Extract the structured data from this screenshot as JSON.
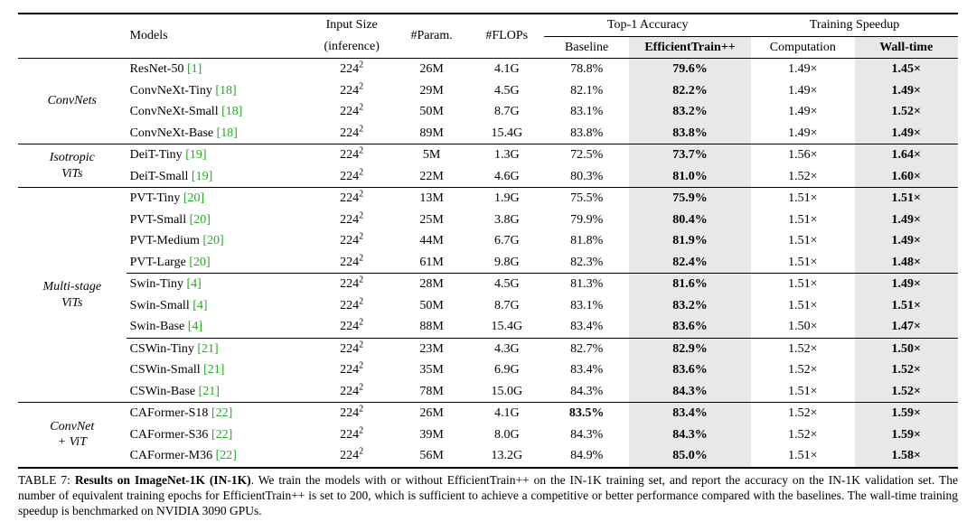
{
  "header": {
    "models": "Models",
    "input_size": "Input Size",
    "inference": "(inference)",
    "param": "#Param.",
    "flops": "#FLOPs",
    "top1": "Top-1 Accuracy",
    "baseline": "Baseline",
    "efftrain": "EfficientTrain++",
    "speedup": "Training Speedup",
    "computation": "Computation",
    "walltime": "Wall-time"
  },
  "input_str": {
    "val": "224",
    "exp": "2"
  },
  "groups": [
    {
      "category_lines": [
        "ConvNets"
      ],
      "sub": [
        {
          "thin_after": false,
          "rows": [
            {
              "model": "ResNet-50",
              "cite": "[1]",
              "param": "26M",
              "flops": "4.1G",
              "base": "78.8%",
              "eff": "79.6%",
              "comp": "1.49×",
              "wall": "1.45×",
              "base_bold": false
            },
            {
              "model": "ConvNeXt-Tiny",
              "cite": "[18]",
              "param": "29M",
              "flops": "4.5G",
              "base": "82.1%",
              "eff": "82.2%",
              "comp": "1.49×",
              "wall": "1.49×",
              "base_bold": false
            },
            {
              "model": "ConvNeXt-Small",
              "cite": "[18]",
              "param": "50M",
              "flops": "8.7G",
              "base": "83.1%",
              "eff": "83.2%",
              "comp": "1.49×",
              "wall": "1.52×",
              "base_bold": false
            },
            {
              "model": "ConvNeXt-Base",
              "cite": "[18]",
              "param": "89M",
              "flops": "15.4G",
              "base": "83.8%",
              "eff": "83.8%",
              "comp": "1.49×",
              "wall": "1.49×",
              "base_bold": false
            }
          ]
        }
      ]
    },
    {
      "category_lines": [
        "Isotropic",
        "ViTs"
      ],
      "sub": [
        {
          "thin_after": false,
          "rows": [
            {
              "model": "DeiT-Tiny",
              "cite": "[19]",
              "param": "5M",
              "flops": "1.3G",
              "base": "72.5%",
              "eff": "73.7%",
              "comp": "1.56×",
              "wall": "1.64×",
              "base_bold": false
            },
            {
              "model": "DeiT-Small",
              "cite": "[19]",
              "param": "22M",
              "flops": "4.6G",
              "base": "80.3%",
              "eff": "81.0%",
              "comp": "1.52×",
              "wall": "1.60×",
              "base_bold": false
            }
          ]
        }
      ]
    },
    {
      "category_lines": [
        "Multi-stage",
        "ViTs"
      ],
      "sub": [
        {
          "thin_after": true,
          "rows": [
            {
              "model": "PVT-Tiny",
              "cite": "[20]",
              "param": "13M",
              "flops": "1.9G",
              "base": "75.5%",
              "eff": "75.9%",
              "comp": "1.51×",
              "wall": "1.51×",
              "base_bold": false
            },
            {
              "model": "PVT-Small",
              "cite": "[20]",
              "param": "25M",
              "flops": "3.8G",
              "base": "79.9%",
              "eff": "80.4%",
              "comp": "1.51×",
              "wall": "1.49×",
              "base_bold": false
            },
            {
              "model": "PVT-Medium",
              "cite": "[20]",
              "param": "44M",
              "flops": "6.7G",
              "base": "81.8%",
              "eff": "81.9%",
              "comp": "1.51×",
              "wall": "1.49×",
              "base_bold": false
            },
            {
              "model": "PVT-Large",
              "cite": "[20]",
              "param": "61M",
              "flops": "9.8G",
              "base": "82.3%",
              "eff": "82.4%",
              "comp": "1.51×",
              "wall": "1.48×",
              "base_bold": false
            }
          ]
        },
        {
          "thin_after": true,
          "rows": [
            {
              "model": "Swin-Tiny",
              "cite": "[4]",
              "param": "28M",
              "flops": "4.5G",
              "base": "81.3%",
              "eff": "81.6%",
              "comp": "1.51×",
              "wall": "1.49×",
              "base_bold": false
            },
            {
              "model": "Swin-Small",
              "cite": "[4]",
              "param": "50M",
              "flops": "8.7G",
              "base": "83.1%",
              "eff": "83.2%",
              "comp": "1.51×",
              "wall": "1.51×",
              "base_bold": false
            },
            {
              "model": "Swin-Base",
              "cite": "[4]",
              "param": "88M",
              "flops": "15.4G",
              "base": "83.4%",
              "eff": "83.6%",
              "comp": "1.50×",
              "wall": "1.47×",
              "base_bold": false
            }
          ]
        },
        {
          "thin_after": false,
          "rows": [
            {
              "model": "CSWin-Tiny",
              "cite": "[21]",
              "param": "23M",
              "flops": "4.3G",
              "base": "82.7%",
              "eff": "82.9%",
              "comp": "1.52×",
              "wall": "1.50×",
              "base_bold": false
            },
            {
              "model": "CSWin-Small",
              "cite": "[21]",
              "param": "35M",
              "flops": "6.9G",
              "base": "83.4%",
              "eff": "83.6%",
              "comp": "1.52×",
              "wall": "1.52×",
              "base_bold": false
            },
            {
              "model": "CSWin-Base",
              "cite": "[21]",
              "param": "78M",
              "flops": "15.0G",
              "base": "84.3%",
              "eff": "84.3%",
              "comp": "1.51×",
              "wall": "1.52×",
              "base_bold": false
            }
          ]
        }
      ]
    },
    {
      "category_lines": [
        "ConvNet",
        "+ ViT"
      ],
      "sub": [
        {
          "thin_after": false,
          "rows": [
            {
              "model": "CAFormer-S18",
              "cite": "[22]",
              "param": "26M",
              "flops": "4.1G",
              "base": "83.5%",
              "eff": "83.4%",
              "comp": "1.52×",
              "wall": "1.59×",
              "base_bold": true
            },
            {
              "model": "CAFormer-S36",
              "cite": "[22]",
              "param": "39M",
              "flops": "8.0G",
              "base": "84.3%",
              "eff": "84.3%",
              "comp": "1.52×",
              "wall": "1.59×",
              "base_bold": false
            },
            {
              "model": "CAFormer-M36",
              "cite": "[22]",
              "param": "56M",
              "flops": "13.2G",
              "base": "84.9%",
              "eff": "85.0%",
              "comp": "1.51×",
              "wall": "1.58×",
              "base_bold": false
            }
          ]
        }
      ]
    }
  ],
  "caption": {
    "prefix": "TABLE 7: ",
    "bold": "Results on ImageNet-1K (IN-1K)",
    "rest": ". We train the models with or without EfficientTrain++ on the IN-1K training set, and report the accuracy on the IN-1K validation set. The number of equivalent training epochs for EfficientTrain++ is set to 200, which is sufficient to achieve a competitive or better performance compared with the baselines. The wall-time training speedup is benchmarked on NVIDIA 3090 GPUs."
  },
  "colors": {
    "cite": "#22a822",
    "shade": "#e8e8e8",
    "rule": "#000000",
    "text": "#000000",
    "bg": "#ffffff"
  },
  "fonts": {
    "body_pt": 14,
    "caption_pt": 13.5,
    "family": "Palatino"
  }
}
